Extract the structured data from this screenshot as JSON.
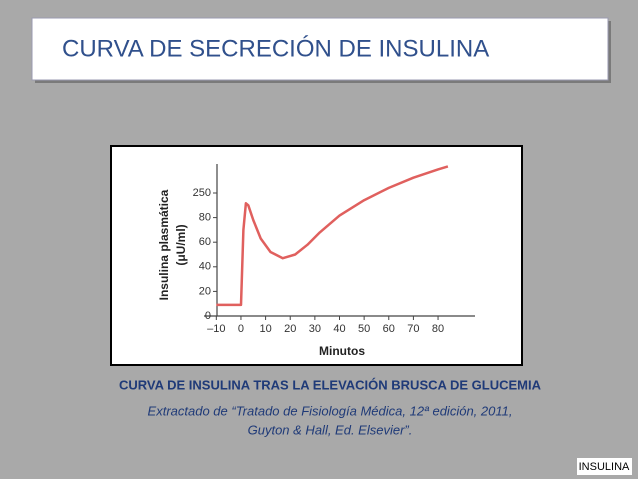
{
  "title": "CURVA DE SECRECIÓN DE INSULINA",
  "caption": [
    "CURVA DE INSULINA TRAS LA ELEVACIÓN BRUSCA DE GLUCEMIA",
    "Extractado de “Tratado de Fisiología Médica, 12ª edición,  2011,",
    "Guyton & Hall, Ed. Elsevier”."
  ],
  "footer": "INSULINA",
  "chart_data": {
    "type": "line",
    "xlabel": "Minutos",
    "ylabel": [
      "Insulina plasmática",
      "(μU/ml)"
    ],
    "x": [
      -10,
      -1,
      0,
      1,
      2,
      3,
      5,
      8,
      12,
      17,
      22,
      27,
      32,
      40,
      50,
      60,
      70,
      80,
      84
    ],
    "values": [
      9,
      9,
      9,
      70,
      179,
      165,
      78,
      63,
      52,
      47,
      50,
      58,
      68,
      94,
      200,
      285,
      356,
      413,
      434
    ],
    "color": "#e0605e",
    "xlim": [
      -15,
      95
    ],
    "xticks": [
      {
        "value": -10,
        "label": "–10"
      },
      0,
      10,
      20,
      30,
      40,
      50,
      60,
      70,
      80
    ],
    "ylim": [
      0,
      450
    ],
    "yticks": [
      0,
      20,
      40,
      60,
      80,
      250
    ]
  }
}
